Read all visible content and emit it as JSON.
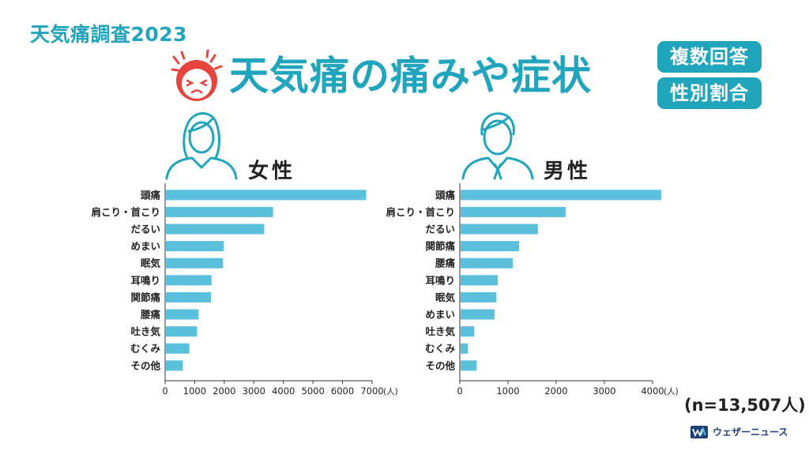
{
  "header": {
    "survey_title": "天気痛調査2023",
    "main_title": "天気痛の痛みや症状",
    "badges": [
      "複数回答",
      "性別割合"
    ]
  },
  "sample_size": "(n=13,507人)",
  "brand": {
    "name": "ウェザーニュース",
    "icon": "weathernews-logo-icon"
  },
  "colors": {
    "accent": "#21a5bd",
    "bar": "#5bc0dc",
    "face": "#e8443e"
  },
  "chart_data": [
    {
      "type": "bar",
      "orientation": "horizontal",
      "title": "女性",
      "unit": "(人)",
      "categories": [
        "頭痛",
        "肩こり・首こり",
        "だるい",
        "めまい",
        "眠気",
        "耳鳴り",
        "関節痛",
        "腰痛",
        "吐き気",
        "むくみ",
        "その他"
      ],
      "values": [
        6800,
        3650,
        3350,
        1980,
        1960,
        1570,
        1550,
        1130,
        1080,
        820,
        600
      ],
      "xlim": [
        0,
        7000
      ],
      "xticks": [
        0,
        1000,
        2000,
        3000,
        4000,
        5000,
        6000,
        7000
      ],
      "grid": false
    },
    {
      "type": "bar",
      "orientation": "horizontal",
      "title": "男性",
      "unit": "(人)",
      "categories": [
        "頭痛",
        "肩こり・首こり",
        "だるい",
        "関節痛",
        "腰痛",
        "耳鳴り",
        "眠気",
        "めまい",
        "吐き気",
        "むくみ",
        "その他"
      ],
      "values": [
        4180,
        2200,
        1620,
        1230,
        1100,
        790,
        760,
        720,
        300,
        170,
        350
      ],
      "xlim": [
        0,
        4000
      ],
      "xticks": [
        0,
        1000,
        2000,
        3000,
        4000
      ],
      "grid": false
    }
  ]
}
